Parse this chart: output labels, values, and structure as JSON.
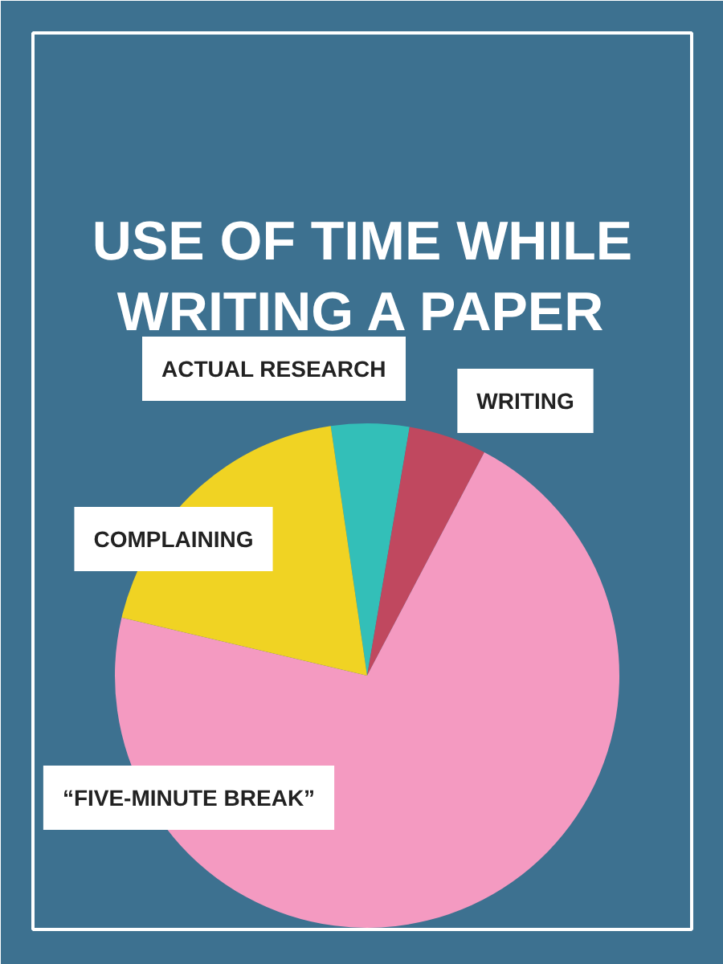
{
  "chart_data": {
    "type": "pie",
    "title": "USE OF TIME WHILE\nWRITING A PAPER",
    "categories": [
      "ACTUAL RESEARCH",
      "WRITING",
      "“FIVE-MINUTE BREAK”",
      "COMPLAINING"
    ],
    "values": [
      5,
      5,
      71,
      19
    ],
    "colors": [
      "#33bfb8",
      "#c0485f",
      "#f49ac1",
      "#f0d323"
    ]
  }
}
